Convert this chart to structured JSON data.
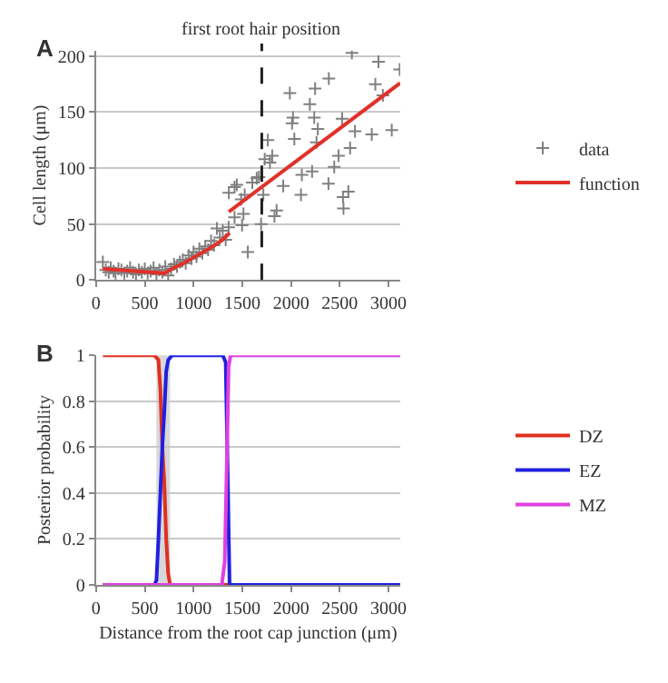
{
  "chart_data": [
    {
      "type": "scatter",
      "title": "A",
      "ylabel": "Cell length (μm)",
      "xlim": [
        0,
        3120
      ],
      "xticks": [
        0,
        500,
        1000,
        1500,
        2000,
        2500,
        3000
      ],
      "ylim": [
        0,
        205
      ],
      "yticks": [
        0,
        50,
        100,
        150,
        200
      ],
      "grid": "y",
      "legend": "right",
      "ref_lines": [
        {
          "axis": "x",
          "value": 1700,
          "label": "first root hair position",
          "line_style": "dashed",
          "color": "#202020"
        }
      ],
      "series": [
        {
          "name": "data",
          "type": "scatter",
          "marker": "cross",
          "color": "#808080",
          "x": [
            70,
            100,
            130,
            150,
            180,
            200,
            230,
            260,
            290,
            320,
            350,
            380,
            410,
            440,
            470,
            500,
            530,
            560,
            590,
            620,
            650,
            680,
            710,
            740,
            770,
            800,
            830,
            860,
            890,
            920,
            950,
            980,
            1000,
            1030,
            1060,
            1090,
            1120,
            1150,
            1180,
            1210,
            1240,
            1270,
            1300,
            1330,
            1360,
            1362,
            1421,
            1444,
            1489,
            1525,
            1557,
            1512,
            1498,
            1421,
            1603,
            1648,
            1671,
            1693,
            1716,
            1730,
            1762,
            1784,
            1807,
            1830,
            1852,
            1920,
            1988,
            2011,
            2020,
            2034,
            2102,
            2111,
            2193,
            2216,
            2238,
            2247,
            2261,
            2275,
            2384,
            2388,
            2443,
            2488,
            2524,
            2533,
            2538,
            2588,
            2606,
            2624,
            2656,
            2828,
            2865,
            2897,
            2942,
            3033,
            3115
          ],
          "values": [
            16,
            9,
            7,
            11,
            8,
            6,
            10,
            9,
            6,
            8,
            11,
            7,
            5,
            9,
            7,
            10,
            6,
            8,
            11,
            5,
            9,
            7,
            12,
            4,
            10,
            14,
            12,
            16,
            18,
            15,
            22,
            19,
            25,
            21,
            28,
            24,
            30,
            27,
            35,
            31,
            46,
            38,
            44,
            36,
            47,
            78,
            83,
            85,
            72,
            76,
            25,
            59,
            49,
            56,
            87,
            91,
            92,
            50,
            76,
            108,
            125,
            105,
            111,
            57,
            62,
            84,
            167,
            140,
            145,
            126,
            76,
            94,
            157,
            97,
            145,
            171,
            123,
            135,
            86,
            180,
            101,
            111,
            144,
            74,
            64,
            79,
            118,
            203,
            133,
            130,
            175,
            195,
            165,
            134,
            188
          ]
        },
        {
          "name": "function",
          "type": "line",
          "color": "#e0312a",
          "x": [
            70,
            700,
            800,
            900,
            1000,
            1100,
            1200,
            1300,
            1370,
            null,
            1362,
            3120
          ],
          "values": [
            10,
            6,
            11,
            15,
            20,
            25,
            30,
            36,
            42,
            null,
            61,
            176
          ]
        }
      ]
    },
    {
      "type": "line",
      "title": "B",
      "xlabel": "Distance from the root cap junction (μm)",
      "ylabel": "Posterior probability",
      "xlim": [
        0,
        3120
      ],
      "xticks": [
        0,
        500,
        1000,
        1500,
        2000,
        2500,
        3000
      ],
      "ylim": [
        0,
        1
      ],
      "yticks": [
        0,
        0.2,
        0.4,
        0.6,
        0.8,
        1
      ],
      "grid": "y",
      "legend": "right",
      "bands": [
        {
          "axis": "x",
          "from": 620,
          "to": 760,
          "color": "#d8d8d8"
        }
      ],
      "series": [
        {
          "name": "DZ",
          "color": "#e03020",
          "x": [
            70,
            600,
            640,
            660,
            680,
            700,
            720,
            740,
            760,
            3120
          ],
          "values": [
            1,
            1,
            0.98,
            0.85,
            0.6,
            0.45,
            0.2,
            0.05,
            0,
            0
          ]
        },
        {
          "name": "EZ",
          "color": "#2020e0",
          "x": [
            70,
            600,
            620,
            640,
            660,
            680,
            700,
            720,
            740,
            780,
            1300,
            1330,
            1350,
            1370,
            3120
          ],
          "values": [
            0,
            0,
            0.02,
            0.2,
            0.4,
            0.6,
            0.75,
            0.93,
            0.98,
            1,
            1,
            0.97,
            0.5,
            0,
            0
          ]
        },
        {
          "name": "MZ",
          "color": "#e040e0",
          "x": [
            70,
            1290,
            1320,
            1340,
            1360,
            1380,
            3120
          ],
          "values": [
            0,
            0,
            0.1,
            0.5,
            0.95,
            1,
            1
          ]
        }
      ]
    }
  ]
}
